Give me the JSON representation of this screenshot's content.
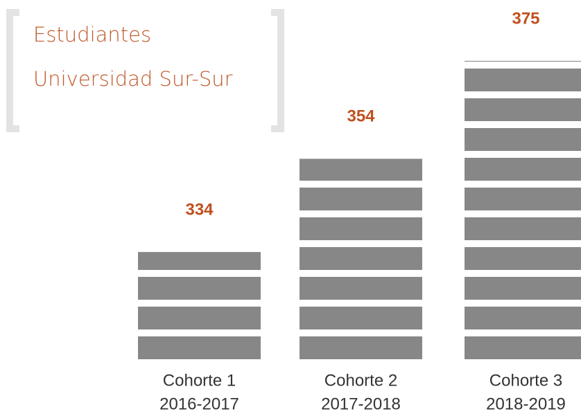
{
  "chart_data": {
    "type": "bar",
    "title": [
      "Estudiantes",
      "Universidad Sur-Sur"
    ],
    "categories": [
      "Cohorte 1",
      "Cohorte 2",
      "Cohorte 3"
    ],
    "periods": [
      "2016-2017",
      "2017-2018",
      "2018-2019"
    ],
    "values": [
      334,
      354,
      375
    ],
    "color": "#878787",
    "label_color": "#c0501e",
    "ylim": [
      311,
      377
    ]
  }
}
